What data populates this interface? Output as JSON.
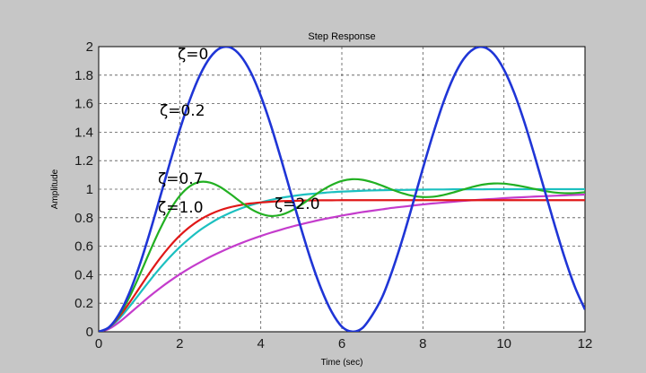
{
  "chart_data": {
    "type": "line",
    "title": "Step Response",
    "xlabel": "Time (sec)",
    "ylabel": "Amplitude",
    "xlim": [
      0,
      12
    ],
    "ylim": [
      0,
      2
    ],
    "xticks": [
      "0",
      "2",
      "4",
      "6",
      "8",
      "10",
      "12"
    ],
    "yticks": [
      "0",
      "0.2",
      "0.4",
      "0.6",
      "0.8",
      "1",
      "1.2",
      "1.4",
      "1.6",
      "1.8",
      "2"
    ],
    "grid": true,
    "legend": "none",
    "x": [
      0,
      0.25,
      0.5,
      0.75,
      1,
      1.25,
      1.5,
      1.75,
      2,
      2.25,
      2.5,
      2.75,
      3,
      3.25,
      3.5,
      3.75,
      4,
      4.25,
      4.5,
      4.75,
      5,
      5.25,
      5.5,
      5.75,
      6,
      6.25,
      6.5,
      6.75,
      7,
      7.25,
      7.5,
      7.75,
      8,
      8.25,
      8.5,
      8.75,
      9,
      9.25,
      9.5,
      9.75,
      10,
      10.25,
      10.5,
      10.75,
      11,
      11.25,
      11.5,
      11.75,
      12
    ],
    "series": [
      {
        "name": "ζ=0",
        "color": "#1f35d6",
        "values": [
          0,
          0.031,
          0.122,
          0.268,
          0.46,
          0.685,
          0.929,
          1.178,
          1.416,
          1.628,
          1.801,
          1.924,
          1.99,
          1.994,
          1.936,
          1.821,
          1.654,
          1.447,
          1.212,
          0.965,
          0.72,
          0.491,
          0.294,
          0.139,
          0.036,
          0.001,
          0.024,
          0.117,
          0.246,
          0.433,
          0.653,
          0.896,
          1.146,
          1.386,
          1.604,
          1.782,
          1.911,
          1.983,
          1.996,
          1.948,
          1.839,
          1.678,
          1.474,
          1.241,
          0.995,
          0.75,
          0.518,
          0.315,
          0.156
        ]
      },
      {
        "name": "ζ=0.2",
        "color": "#22b022",
        "values": [
          0,
          0.03,
          0.113,
          0.238,
          0.391,
          0.555,
          0.712,
          0.848,
          0.953,
          1.021,
          1.051,
          1.046,
          1.015,
          0.966,
          0.912,
          0.862,
          0.828,
          0.812,
          0.82,
          0.848,
          0.891,
          0.941,
          0.99,
          1.03,
          1.058,
          1.07,
          1.066,
          1.049,
          1.024,
          0.996,
          0.971,
          0.953,
          0.945,
          0.947,
          0.959,
          0.977,
          0.998,
          1.018,
          1.033,
          1.04,
          1.039,
          1.03,
          1.017,
          1.002,
          0.988,
          0.977,
          0.972,
          0.973,
          0.979
        ]
      },
      {
        "name": "ζ=0.7",
        "color": "#e01818",
        "values": [
          0,
          0.029,
          0.103,
          0.2,
          0.305,
          0.411,
          0.51,
          0.598,
          0.674,
          0.736,
          0.786,
          0.824,
          0.853,
          0.874,
          0.889,
          0.9,
          0.907,
          0.912,
          0.916,
          0.918,
          0.92,
          0.921,
          0.922,
          0.922,
          0.923,
          0.923,
          0.923,
          0.923,
          0.923,
          0.923,
          0.923,
          0.923,
          0.923,
          0.923,
          0.923,
          0.923,
          0.923,
          0.923,
          0.923,
          0.923,
          0.923,
          0.923,
          0.923,
          0.923,
          0.923,
          0.923,
          0.923,
          0.923,
          0.923
        ]
      },
      {
        "name": "ζ=1.0",
        "color": "#1cc0c0",
        "values": [
          0,
          0.028,
          0.09,
          0.173,
          0.264,
          0.355,
          0.442,
          0.522,
          0.594,
          0.657,
          0.713,
          0.76,
          0.801,
          0.835,
          0.864,
          0.888,
          0.908,
          0.925,
          0.939,
          0.95,
          0.96,
          0.967,
          0.973,
          0.979,
          0.983,
          0.986,
          0.989,
          0.991,
          0.993,
          0.994,
          0.995,
          0.996,
          0.997,
          0.998,
          0.998,
          0.999,
          0.999,
          0.999,
          0.999,
          1,
          1,
          1,
          1,
          1,
          1,
          1,
          1,
          1,
          1
        ]
      },
      {
        "name": "ζ=2.0",
        "color": "#c43ccc",
        "values": [
          0,
          0.02,
          0.066,
          0.125,
          0.186,
          0.247,
          0.303,
          0.355,
          0.403,
          0.447,
          0.487,
          0.525,
          0.559,
          0.591,
          0.62,
          0.647,
          0.672,
          0.695,
          0.716,
          0.736,
          0.754,
          0.771,
          0.787,
          0.801,
          0.815,
          0.827,
          0.839,
          0.849,
          0.859,
          0.869,
          0.877,
          0.885,
          0.893,
          0.9,
          0.906,
          0.912,
          0.918,
          0.923,
          0.928,
          0.932,
          0.937,
          0.941,
          0.944,
          0.948,
          0.951,
          0.954,
          0.957,
          0.96,
          0.962
        ]
      }
    ],
    "annotations": [
      "ζ=0",
      "ζ=0.2",
      "ζ=0.7",
      "ζ=1.0",
      "ζ=2.0"
    ]
  }
}
